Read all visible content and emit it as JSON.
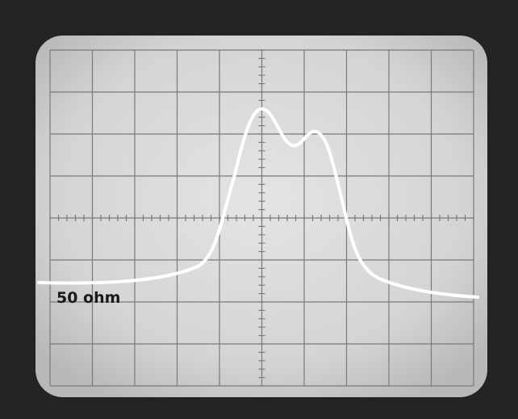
{
  "label": "50 ohm"
}
